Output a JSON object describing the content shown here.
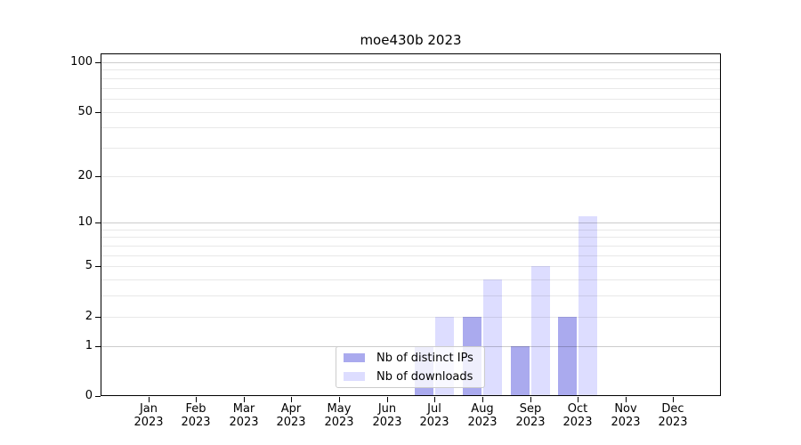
{
  "chart_data": {
    "type": "bar",
    "title": "moe430b 2023",
    "categories": [
      "Jan 2023",
      "Feb 2023",
      "Mar 2023",
      "Apr 2023",
      "May 2023",
      "Jun 2023",
      "Jul 2023",
      "Aug 2023",
      "Sep 2023",
      "Oct 2023",
      "Nov 2023",
      "Dec 2023"
    ],
    "series": [
      {
        "name": "Nb of distinct IPs",
        "color": "#aaaaee",
        "values": [
          0,
          0,
          0,
          0,
          0,
          0,
          1,
          2,
          1,
          2,
          0,
          0
        ]
      },
      {
        "name": "Nb of downloads",
        "color": "#ddddff",
        "values": [
          0,
          0,
          0,
          0,
          0,
          0,
          2,
          4,
          5,
          11,
          0,
          0
        ]
      }
    ],
    "xlabel": "",
    "ylabel": "",
    "ylim": [
      0,
      100
    ],
    "y_scale": "log1p",
    "y_ticks": [
      0,
      1,
      2,
      5,
      10,
      20,
      50,
      100
    ],
    "y_gridlines": [
      1,
      2,
      3,
      4,
      5,
      6,
      7,
      8,
      9,
      10,
      20,
      30,
      40,
      50,
      60,
      70,
      80,
      90,
      100
    ],
    "y_major_gridlines": [
      1,
      10,
      100
    ],
    "grid_minor_color": "rgba(0,0,0,0.09)",
    "grid_major_color": "rgba(0,0,0,0.20)",
    "legend_position": "inside-bottom-center",
    "grid": "on"
  }
}
